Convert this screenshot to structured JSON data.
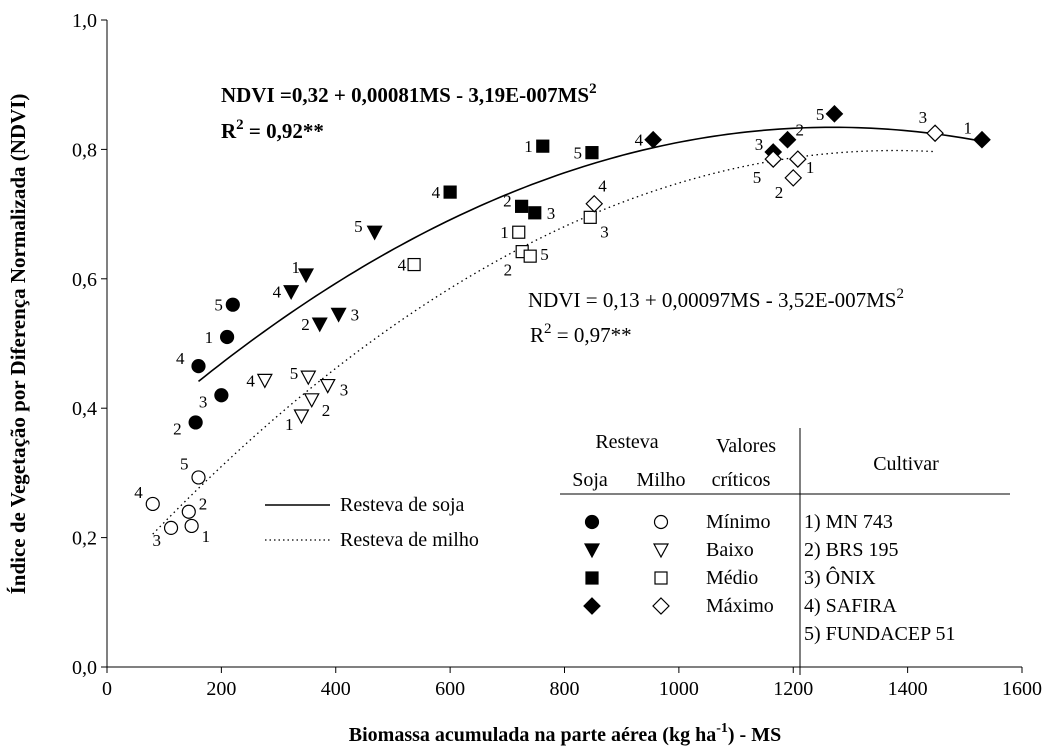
{
  "chart_data": {
    "type": "scatter",
    "xlabel": "Biomassa acumulada na parte aérea (kg ha",
    "xlabel_sup": "-1",
    "xlabel_tail": ") - MS",
    "ylabel": "Índice de Vegetação por Diferença Normalizada (NDVI)",
    "xlim": [
      0,
      1600
    ],
    "ylim": [
      0,
      1
    ],
    "x_ticks": [
      "0",
      "200",
      "400",
      "600",
      "800",
      "1000",
      "1200",
      "1400",
      "1600"
    ],
    "y_ticks": [
      "0,0",
      "0,2",
      "0,4",
      "0,6",
      "0,8",
      "1,0"
    ],
    "equations": {
      "soja": {
        "text": "NDVI =0,32 + 0,00081MS - 3,19E-007MS",
        "sup": "2",
        "r2_label": "R",
        "r2_sup": "2",
        "r2_value": " = 0,92**"
      },
      "milho": {
        "text": "NDVI = 0,13 + 0,00097MS - 3,52E-007MS",
        "sup": "2",
        "r2_label": "R",
        "r2_sup": "2",
        "r2_value": " = 0,97**"
      }
    },
    "trend_lines": [
      {
        "name": "Resteva de soja",
        "style": "solid",
        "coef": [
          0.32,
          0.00081,
          -3.19e-07
        ],
        "x_range": [
          160,
          1530
        ]
      },
      {
        "name": "Resteva de milho",
        "style": "dotted",
        "coef": [
          0.13,
          0.00097,
          -3.52e-07
        ],
        "x_range": [
          80,
          1450
        ]
      }
    ],
    "series": [
      {
        "shape": "circle",
        "filled": true,
        "points": [
          {
            "x": 210,
            "y": 0.51,
            "label": "1"
          },
          {
            "x": 155,
            "y": 0.378,
            "label": "2"
          },
          {
            "x": 200,
            "y": 0.42,
            "label": "3"
          },
          {
            "x": 160,
            "y": 0.465,
            "label": "4"
          },
          {
            "x": 220,
            "y": 0.56,
            "label": "5"
          }
        ]
      },
      {
        "shape": "circle",
        "filled": false,
        "points": [
          {
            "x": 148,
            "y": 0.218,
            "label": "1"
          },
          {
            "x": 143,
            "y": 0.24,
            "label": "2"
          },
          {
            "x": 112,
            "y": 0.215,
            "label": "3"
          },
          {
            "x": 80,
            "y": 0.252,
            "label": "4"
          },
          {
            "x": 160,
            "y": 0.293,
            "label": "5"
          }
        ]
      },
      {
        "shape": "triangle",
        "filled": true,
        "points": [
          {
            "x": 348,
            "y": 0.606,
            "label": "1"
          },
          {
            "x": 372,
            "y": 0.53,
            "label": "2"
          },
          {
            "x": 405,
            "y": 0.545,
            "label": "3"
          },
          {
            "x": 322,
            "y": 0.58,
            "label": "4"
          },
          {
            "x": 468,
            "y": 0.672,
            "label": "5"
          }
        ]
      },
      {
        "shape": "triangle",
        "filled": false,
        "points": [
          {
            "x": 340,
            "y": 0.388,
            "label": "1"
          },
          {
            "x": 358,
            "y": 0.413,
            "label": "2"
          },
          {
            "x": 386,
            "y": 0.435,
            "label": "3"
          },
          {
            "x": 276,
            "y": 0.443,
            "label": "4"
          },
          {
            "x": 352,
            "y": 0.448,
            "label": "5"
          }
        ]
      },
      {
        "shape": "square",
        "filled": true,
        "points": [
          {
            "x": 762,
            "y": 0.805,
            "label": "1"
          },
          {
            "x": 725,
            "y": 0.712,
            "label": "2"
          },
          {
            "x": 748,
            "y": 0.702,
            "label": "3"
          },
          {
            "x": 600,
            "y": 0.734,
            "label": "4"
          },
          {
            "x": 848,
            "y": 0.795,
            "label": "5"
          }
        ]
      },
      {
        "shape": "square",
        "filled": false,
        "points": [
          {
            "x": 720,
            "y": 0.672,
            "label": "1"
          },
          {
            "x": 726,
            "y": 0.642,
            "label": "2"
          },
          {
            "x": 845,
            "y": 0.695,
            "label": "3"
          },
          {
            "x": 537,
            "y": 0.622,
            "label": "4"
          },
          {
            "x": 740,
            "y": 0.635,
            "label": "5"
          }
        ]
      },
      {
        "shape": "diamond",
        "filled": true,
        "points": [
          {
            "x": 1530,
            "y": 0.815,
            "label": "1"
          },
          {
            "x": 1190,
            "y": 0.815,
            "label": "2"
          },
          {
            "x": 1165,
            "y": 0.796,
            "label": "3"
          },
          {
            "x": 955,
            "y": 0.815,
            "label": "4"
          },
          {
            "x": 1272,
            "y": 0.855,
            "label": "5"
          }
        ]
      },
      {
        "shape": "diamond",
        "filled": false,
        "points": [
          {
            "x": 1208,
            "y": 0.785,
            "label": "1"
          },
          {
            "x": 1200,
            "y": 0.756,
            "label": "2"
          },
          {
            "x": 1448,
            "y": 0.825,
            "label": "3"
          },
          {
            "x": 852,
            "y": 0.716,
            "label": "4"
          },
          {
            "x": 1165,
            "y": 0.785,
            "label": "5"
          }
        ]
      }
    ],
    "legend_lines": [
      {
        "label": "Resteva de soja",
        "style": "solid"
      },
      {
        "label": "Resteva de milho",
        "style": "dotted"
      }
    ],
    "legend_table": {
      "header_top": "Resteva",
      "header_valores_1": "Valores",
      "header_valores_2": "críticos",
      "header_soja": "Soja",
      "header_milho": "Milho",
      "header_cultivar": "Cultivar",
      "rows": [
        {
          "shape": "circle",
          "label": "Mínimo"
        },
        {
          "shape": "triangle",
          "label": "Baixo"
        },
        {
          "shape": "square",
          "label": "Médio"
        },
        {
          "shape": "diamond",
          "label": "Máximo"
        }
      ],
      "cultivars": [
        "1) MN 743",
        "2) BRS 195",
        "3) ÔNIX",
        "4) SAFIRA",
        "5) FUNDACEP 51"
      ]
    }
  }
}
